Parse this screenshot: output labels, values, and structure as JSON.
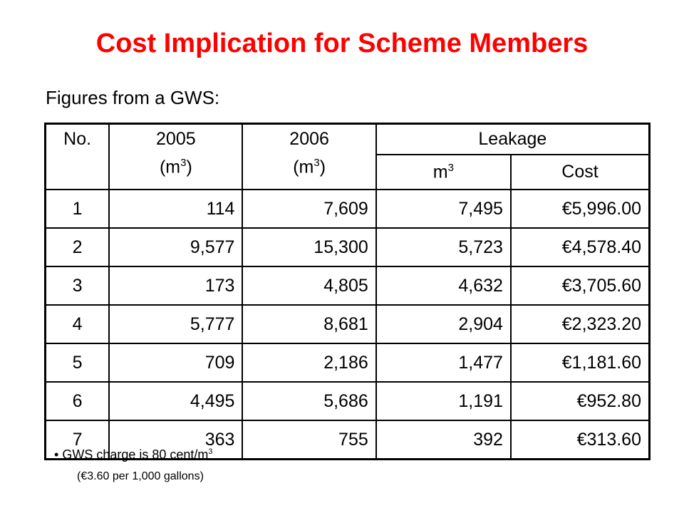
{
  "title": "Cost Implication for Scheme Members",
  "subtitle": "Figures from a GWS:",
  "table": {
    "headers": {
      "no": "No.",
      "y2005": "2005",
      "y2006": "2006",
      "unit_open": "(m",
      "unit_sup": "3",
      "unit_close": ")",
      "leakage": "Leakage",
      "m": "m",
      "m_sup": "3",
      "cost": "Cost"
    },
    "rows": [
      {
        "no": "1",
        "y2005": "114",
        "y2006": "7,609",
        "leak_m3": "7,495",
        "cost": "€5,996.00"
      },
      {
        "no": "2",
        "y2005": "9,577",
        "y2006": "15,300",
        "leak_m3": "5,723",
        "cost": "€4,578.40"
      },
      {
        "no": "3",
        "y2005": "173",
        "y2006": "4,805",
        "leak_m3": "4,632",
        "cost": "€3,705.60"
      },
      {
        "no": "4",
        "y2005": "5,777",
        "y2006": "8,681",
        "leak_m3": "2,904",
        "cost": "€2,323.20"
      },
      {
        "no": "5",
        "y2005": "709",
        "y2006": "2,186",
        "leak_m3": "1,477",
        "cost": "€1,181.60"
      },
      {
        "no": "6",
        "y2005": "4,495",
        "y2006": "5,686",
        "leak_m3": "1,191",
        "cost": "€952.80"
      },
      {
        "no": "7",
        "y2005": "363",
        "y2006": "755",
        "leak_m3": "392",
        "cost": "€313.60"
      }
    ]
  },
  "notes": {
    "bullet": "•",
    "charge": "GWS charge is 80 cent/m",
    "charge_sup": "3",
    "gallons": "(€3.60 per 1,000 gallons)"
  },
  "colors": {
    "title": "#ff0000"
  }
}
